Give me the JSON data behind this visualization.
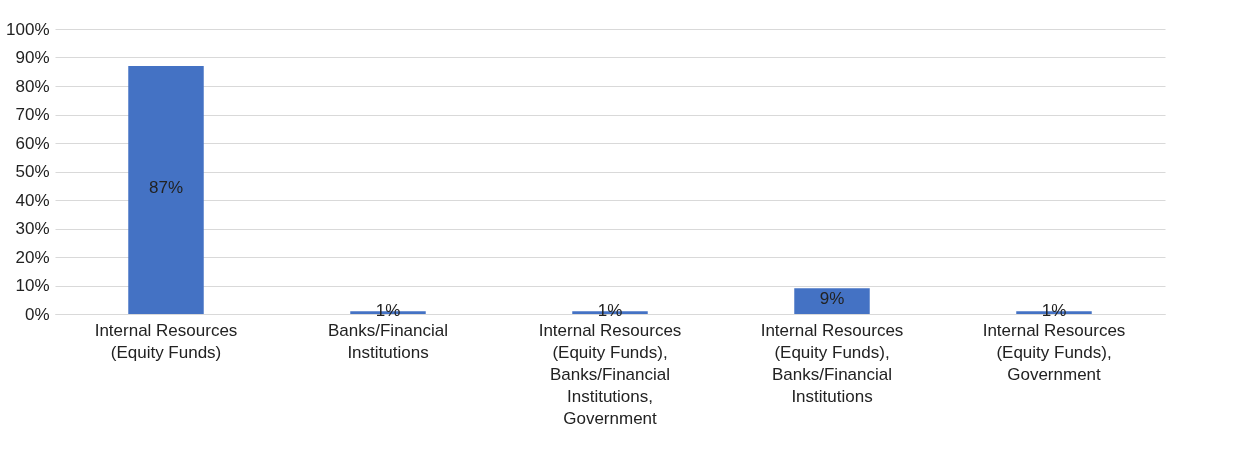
{
  "chart_data": {
    "type": "bar",
    "categories": [
      "Internal Resources (Equity Funds)",
      "Banks/Financial Institutions",
      "Internal Resources (Equity Funds), Banks/Financial Institutions, Government",
      "Internal Resources (Equity Funds), Banks/Financial Institutions",
      "Internal Resources (Equity Funds), Government"
    ],
    "values": [
      87,
      1,
      1,
      9,
      1
    ],
    "value_labels": [
      "87%",
      "1%",
      "1%",
      "9%",
      "1%"
    ],
    "color": "#4472c4",
    "ylim": [
      0,
      100
    ],
    "yticks": [
      {
        "value": 0,
        "label": "0%"
      },
      {
        "value": 10,
        "label": "10%"
      },
      {
        "value": 20,
        "label": "20%"
      },
      {
        "value": 30,
        "label": "30%"
      },
      {
        "value": 40,
        "label": "40%"
      },
      {
        "value": 50,
        "label": "50%"
      },
      {
        "value": 60,
        "label": "60%"
      },
      {
        "value": 70,
        "label": "70%"
      },
      {
        "value": 80,
        "label": "80%"
      },
      {
        "value": 90,
        "label": "90%"
      },
      {
        "value": 100,
        "label": "100%"
      }
    ],
    "grid": "y"
  }
}
